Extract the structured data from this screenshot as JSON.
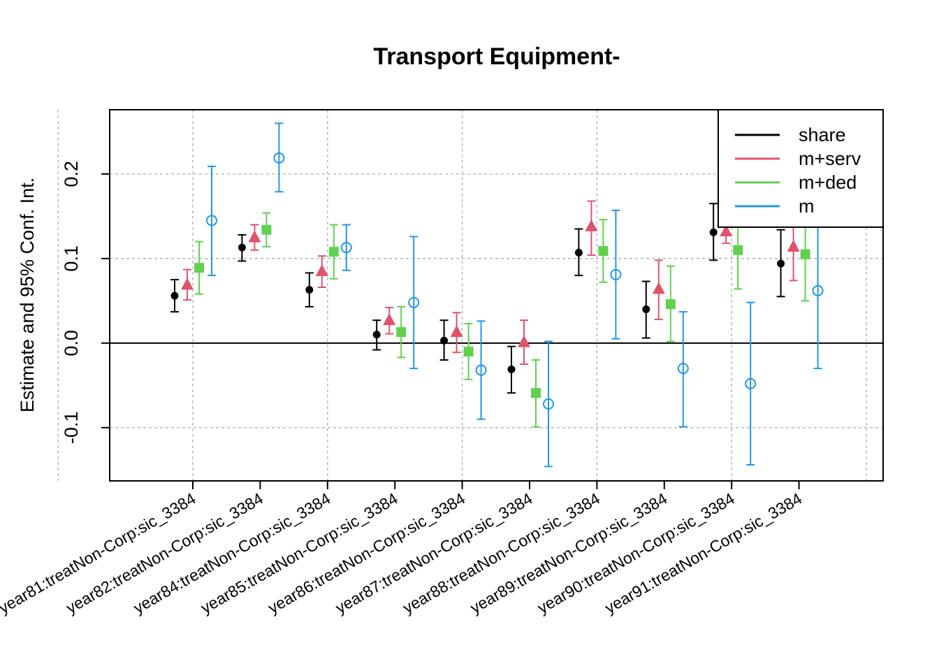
{
  "chart_data": {
    "type": "scatter",
    "title": "Transport Equipment-",
    "xlabel": "",
    "ylabel": "Estimate and 95% Conf. Int.",
    "ylim": [
      -0.163,
      0.276
    ],
    "yticks": [
      -0.1,
      0.0,
      0.1,
      0.2
    ],
    "ytick_labels": [
      "-0.1",
      "0.0",
      "0.1",
      "0.2"
    ],
    "grid": true,
    "reference_line": 0,
    "legend_position": "top-right",
    "categories": [
      "year81:treatNon-Corp:sic_3384",
      "year82:treatNon-Corp:sic_3384",
      "year84:treatNon-Corp:sic_3384",
      "year85:treatNon-Corp:sic_3384",
      "year86:treatNon-Corp:sic_3384",
      "year87:treatNon-Corp:sic_3384",
      "year88:treatNon-Corp:sic_3384",
      "year89:treatNon-Corp:sic_3384",
      "year90:treatNon-Corp:sic_3384",
      "year91:treatNon-Corp:sic_3384"
    ],
    "series": [
      {
        "name": "share",
        "color": "#000000",
        "marker": "dot",
        "estimates": [
          0.056,
          0.113,
          0.063,
          0.01,
          0.003,
          -0.031,
          0.107,
          0.04,
          0.131,
          0.094
        ],
        "lower": [
          0.037,
          0.097,
          0.043,
          -0.008,
          -0.02,
          -0.059,
          0.08,
          0.006,
          0.098,
          0.055
        ],
        "upper": [
          0.075,
          0.128,
          0.083,
          0.027,
          0.027,
          -0.004,
          0.135,
          0.073,
          0.165,
          0.134
        ]
      },
      {
        "name": "m+serv",
        "color": "#DF536B",
        "marker": "triangle",
        "estimates": [
          0.069,
          0.125,
          0.085,
          0.027,
          0.013,
          0.001,
          0.138,
          0.064,
          0.132,
          0.114
        ],
        "lower": [
          0.051,
          0.11,
          0.066,
          0.011,
          -0.011,
          -0.025,
          0.104,
          0.028,
          0.118,
          0.074
        ],
        "upper": [
          0.087,
          0.14,
          0.103,
          0.042,
          0.036,
          0.027,
          0.168,
          0.098,
          0.147,
          0.155
        ]
      },
      {
        "name": "m+ded",
        "color": "#61D04F",
        "marker": "square",
        "estimates": [
          0.089,
          0.134,
          0.108,
          0.013,
          -0.01,
          -0.059,
          0.109,
          0.046,
          0.11,
          0.105
        ],
        "lower": [
          0.058,
          0.114,
          0.076,
          -0.017,
          -0.043,
          -0.099,
          0.072,
          0.002,
          0.064,
          0.05
        ],
        "upper": [
          0.12,
          0.154,
          0.14,
          0.043,
          0.023,
          -0.02,
          0.146,
          0.091,
          0.156,
          0.16
        ]
      },
      {
        "name": "m",
        "color": "#2297E6",
        "marker": "circle",
        "estimates": [
          0.145,
          0.219,
          0.113,
          0.048,
          -0.032,
          -0.072,
          0.081,
          -0.03,
          -0.048,
          0.062
        ],
        "lower": [
          0.08,
          0.179,
          0.086,
          -0.03,
          -0.09,
          -0.146,
          0.005,
          -0.099,
          -0.144,
          -0.03
        ],
        "upper": [
          0.209,
          0.26,
          0.14,
          0.126,
          0.026,
          0.002,
          0.157,
          0.037,
          0.048,
          0.154
        ]
      }
    ]
  }
}
